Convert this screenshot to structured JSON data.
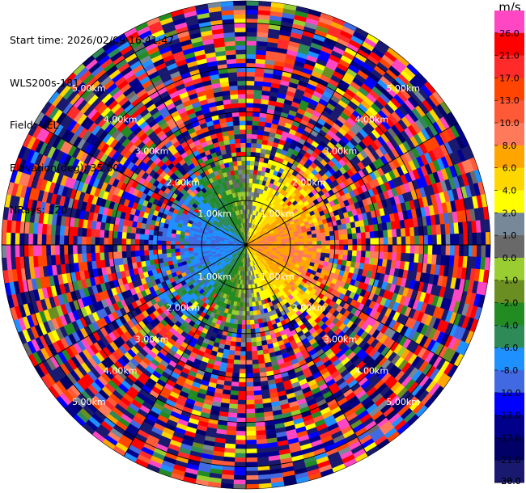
{
  "info": {
    "start_time": "Start time: 2026/02/09 16:41:47",
    "instrument": "WLS200s-181",
    "field": "Field: VEL",
    "elevation": "Elevation(deg): 35.00",
    "nrays": "NRays: 120"
  },
  "colorbar": {
    "unit": "m/s",
    "levels": [
      {
        "label": "26.0",
        "color": "#ff47c4"
      },
      {
        "label": "21.0",
        "color": "#ff0000"
      },
      {
        "label": "17.0",
        "color": "#ff2b2b"
      },
      {
        "label": "13.0",
        "color": "#ff4500"
      },
      {
        "label": "10.0",
        "color": "#ff5a38"
      },
      {
        "label": "8.0",
        "color": "#ff7a5a"
      },
      {
        "label": "6.0",
        "color": "#ffa500"
      },
      {
        "label": "4.0",
        "color": "#ffd700"
      },
      {
        "label": "2.0",
        "color": "#ffff00"
      },
      {
        "label": "1.0",
        "color": "#778899"
      },
      {
        "label": "0.0",
        "color": "#696969"
      },
      {
        "label": "-1.0",
        "color": "#9acd32"
      },
      {
        "label": "-2.0",
        "color": "#6b8e23"
      },
      {
        "label": "-4.0",
        "color": "#228b22"
      },
      {
        "label": "-6.0",
        "color": "#2e8b57"
      },
      {
        "label": "-8.0",
        "color": "#1e90ff"
      },
      {
        "label": "-10.0",
        "color": "#4169e1"
      },
      {
        "label": "-13.0",
        "color": "#0000ff"
      },
      {
        "label": "-17.0",
        "color": "#00008b"
      },
      {
        "label": "-21.0",
        "color": "#000066"
      },
      {
        "label": "-26.0",
        "color": "#191970"
      },
      {
        "label": "-30.0",
        "color": ""
      }
    ]
  },
  "chart_data": {
    "type": "heatmap",
    "projection": "polar (PPI)",
    "field": "VEL",
    "nrays": 120,
    "range_rings_km": [
      1,
      2,
      3,
      4,
      5
    ],
    "range_ring_labels": [
      "1.00km",
      "2.00km",
      "3.00km",
      "4.00km",
      "5.00km"
    ],
    "max_range_km": 5.5,
    "pattern": "near-range coherent wind (positive/red-yellow east, negative/green-blue west); far range noisy values across full scale"
  }
}
